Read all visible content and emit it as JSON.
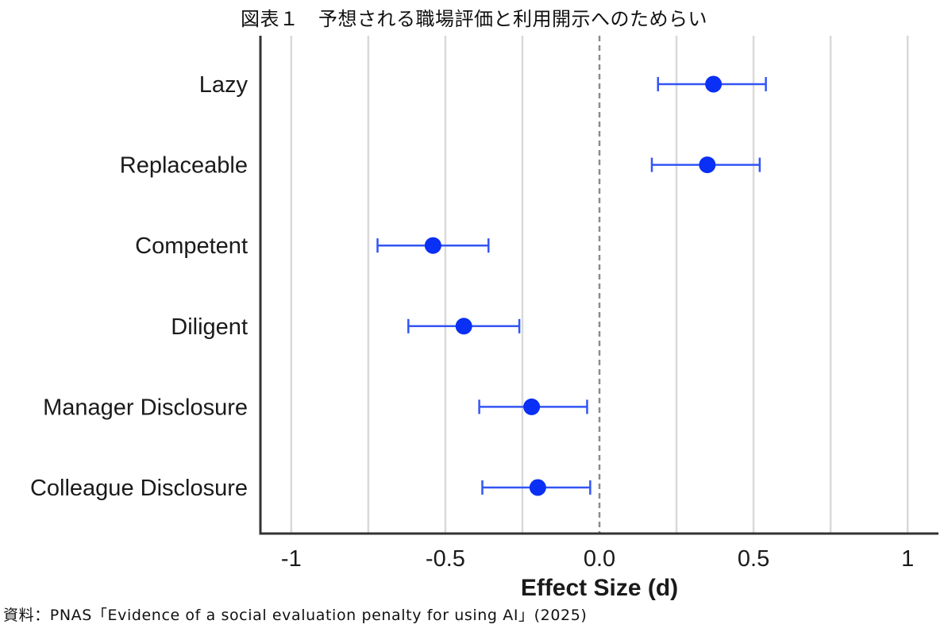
{
  "title": "図表１　予想される職場評価と利用開示へのためらい",
  "source": "資料：PNAS「Evidence of a social evaluation penalty for using AI」(2025)",
  "colors": {
    "point": "#0a2ff5",
    "errorbar": "#3355f5",
    "grid": "#d9d9d9",
    "axis": "#333333",
    "zero_line": "#8c8c8c"
  },
  "chart_data": {
    "type": "scatter",
    "subtype": "forest-plot",
    "title": "図表１　予想される職場評価と利用開示へのためらい",
    "xlabel": "Effect Size (d)",
    "ylabel": "",
    "xlim": [
      -1.1,
      1.1
    ],
    "x_ticks": [
      -1,
      -0.5,
      0,
      0.5,
      1
    ],
    "x_tick_labels": [
      "-1",
      "-0.5",
      "0.0",
      "0.5",
      "1"
    ],
    "minor_gridlines": [
      -0.75,
      -0.25,
      0.25,
      0.75
    ],
    "reference_line": 0,
    "grid": true,
    "categories": [
      "Lazy",
      "Replaceable",
      "Competent",
      "Diligent",
      "Manager Disclosure",
      "Colleague Disclosure"
    ],
    "series": [
      {
        "name": "Effect Size (d)",
        "values": [
          0.37,
          0.35,
          -0.54,
          -0.44,
          -0.22,
          -0.2
        ],
        "ci_lower": [
          0.19,
          0.17,
          -0.72,
          -0.62,
          -0.39,
          -0.38
        ],
        "ci_upper": [
          0.54,
          0.52,
          -0.36,
          -0.26,
          -0.04,
          -0.03
        ]
      }
    ]
  }
}
